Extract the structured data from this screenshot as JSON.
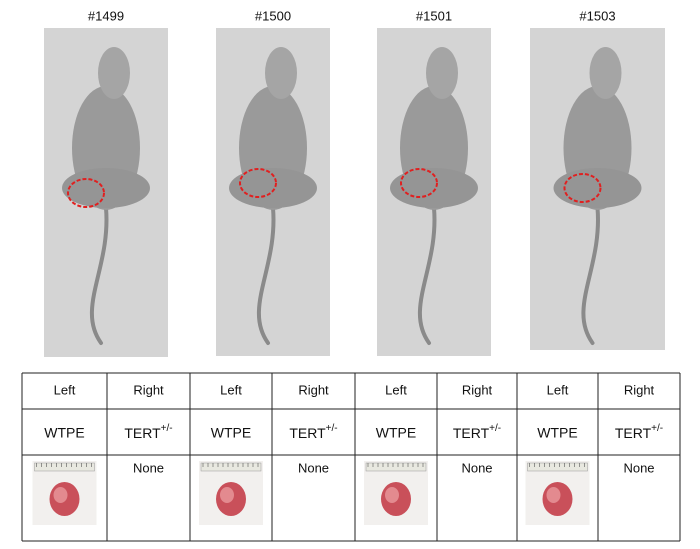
{
  "mice": [
    {
      "label": "#1499",
      "left_header": "Left",
      "right_header": "Right",
      "left_cell_line": "WTPE",
      "right_cell_line": "TERT",
      "right_cell_line_sup": "+/-",
      "right_tumor": "None"
    },
    {
      "label": "#1500",
      "left_header": "Left",
      "right_header": "Right",
      "left_cell_line": "WTPE",
      "right_cell_line": "TERT",
      "right_cell_line_sup": "+/-",
      "right_tumor": "None"
    },
    {
      "label": "#1501",
      "left_header": "Left",
      "right_header": "Right",
      "left_cell_line": "WTPE",
      "right_cell_line": "TERT",
      "right_cell_line_sup": "+/-",
      "right_tumor": "None"
    },
    {
      "label": "#1503",
      "left_header": "Left",
      "right_header": "Right",
      "left_cell_line": "WTPE",
      "right_cell_line": "TERT",
      "right_cell_line_sup": "+/-",
      "right_tumor": "None"
    }
  ]
}
